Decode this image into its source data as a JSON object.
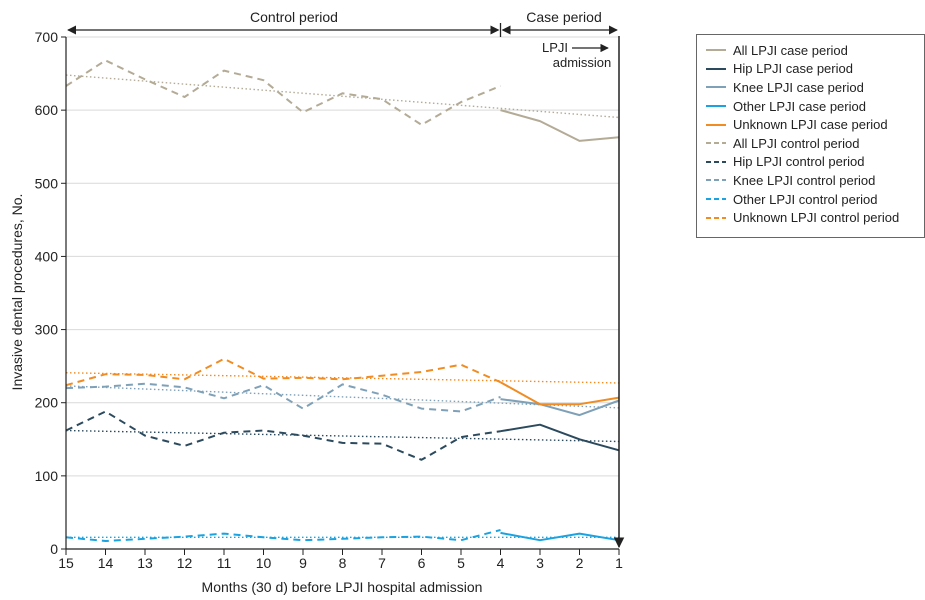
{
  "chart_data": {
    "type": "line",
    "xlabel": "Months (30 d) before LPJI hospital admission",
    "ylabel": "Invasive dental procedures, No.",
    "ylim": [
      0,
      700
    ],
    "yticks": [
      0,
      100,
      200,
      300,
      400,
      500,
      600,
      700
    ],
    "x": [
      15,
      14,
      13,
      12,
      11,
      10,
      9,
      8,
      7,
      6,
      5,
      4,
      3,
      2,
      1
    ],
    "x_tick_labels": [
      "15",
      "14",
      "13",
      "12",
      "11",
      "10",
      "9",
      "8",
      "7",
      "6",
      "5",
      "4",
      "3",
      "2",
      "1"
    ],
    "grid": "horizontal",
    "period_labels": {
      "control": "Control period",
      "case": "Case period"
    },
    "annotation": {
      "line1": "LPJI",
      "line2": "admission"
    },
    "colors": {
      "all": "#b3ab96",
      "hip": "#2c4a5e",
      "knee": "#7fa1b8",
      "other": "#1aa3e0",
      "unknown": "#f08c22"
    },
    "series": [
      {
        "name": "All LPJI case period",
        "key": "all",
        "style": "solid",
        "x": [
          4,
          3,
          2,
          1
        ],
        "values": [
          600,
          585,
          558,
          563
        ]
      },
      {
        "name": "Hip LPJI case period",
        "key": "hip",
        "style": "solid",
        "x": [
          4,
          3,
          2,
          1
        ],
        "values": [
          161,
          170,
          150,
          135
        ]
      },
      {
        "name": "Knee LPJI case period",
        "key": "knee",
        "style": "solid",
        "x": [
          4,
          3,
          2,
          1
        ],
        "values": [
          205,
          198,
          183,
          203
        ]
      },
      {
        "name": "Other LPJI case period",
        "key": "other",
        "style": "solid",
        "x": [
          4,
          3,
          2,
          1
        ],
        "values": [
          22,
          12,
          21,
          12
        ]
      },
      {
        "name": "Unknown LPJI case period",
        "key": "unknown",
        "style": "solid",
        "x": [
          4,
          3,
          2,
          1
        ],
        "values": [
          228,
          198,
          198,
          207
        ]
      },
      {
        "name": "All LPJI control period",
        "key": "all",
        "style": "dashed",
        "x": [
          15,
          14,
          13,
          12,
          11,
          10,
          9,
          8,
          7,
          6,
          5,
          4
        ],
        "values": [
          633,
          668,
          642,
          618,
          654,
          641,
          597,
          623,
          615,
          580,
          611,
          633
        ]
      },
      {
        "name": "Hip LPJI control period",
        "key": "hip",
        "style": "dashed",
        "x": [
          15,
          14,
          13,
          12,
          11,
          10,
          9,
          8,
          7,
          6,
          5,
          4
        ],
        "values": [
          162,
          188,
          155,
          141,
          159,
          162,
          155,
          145,
          144,
          122,
          153,
          161
        ]
      },
      {
        "name": "Knee LPJI control period",
        "key": "knee",
        "style": "dashed",
        "x": [
          15,
          14,
          13,
          12,
          11,
          10,
          9,
          8,
          7,
          6,
          5,
          4
        ],
        "values": [
          220,
          222,
          226,
          221,
          206,
          224,
          192,
          225,
          211,
          192,
          188,
          208
        ]
      },
      {
        "name": "Other LPJI control period",
        "key": "other",
        "style": "dashed",
        "x": [
          15,
          14,
          13,
          12,
          11,
          10,
          9,
          8,
          7,
          6,
          5,
          4
        ],
        "values": [
          16,
          11,
          14,
          17,
          21,
          16,
          12,
          14,
          16,
          17,
          12,
          26
        ]
      },
      {
        "name": "Unknown LPJI control period",
        "key": "unknown",
        "style": "dashed",
        "x": [
          15,
          14,
          13,
          12,
          11,
          10,
          9,
          8,
          7,
          6,
          5,
          4
        ],
        "values": [
          224,
          239,
          238,
          232,
          260,
          233,
          234,
          232,
          237,
          242,
          252,
          228
        ]
      }
    ],
    "trend_lines": [
      {
        "key": "all",
        "from": [
          15,
          648
        ],
        "to": [
          1,
          590
        ]
      },
      {
        "key": "hip",
        "from": [
          15,
          162
        ],
        "to": [
          1,
          147
        ]
      },
      {
        "key": "knee",
        "from": [
          15,
          223
        ],
        "to": [
          1,
          193
        ]
      },
      {
        "key": "other",
        "from": [
          15,
          16
        ],
        "to": [
          1,
          16
        ]
      },
      {
        "key": "unknown",
        "from": [
          15,
          241
        ],
        "to": [
          1,
          227
        ]
      }
    ]
  }
}
